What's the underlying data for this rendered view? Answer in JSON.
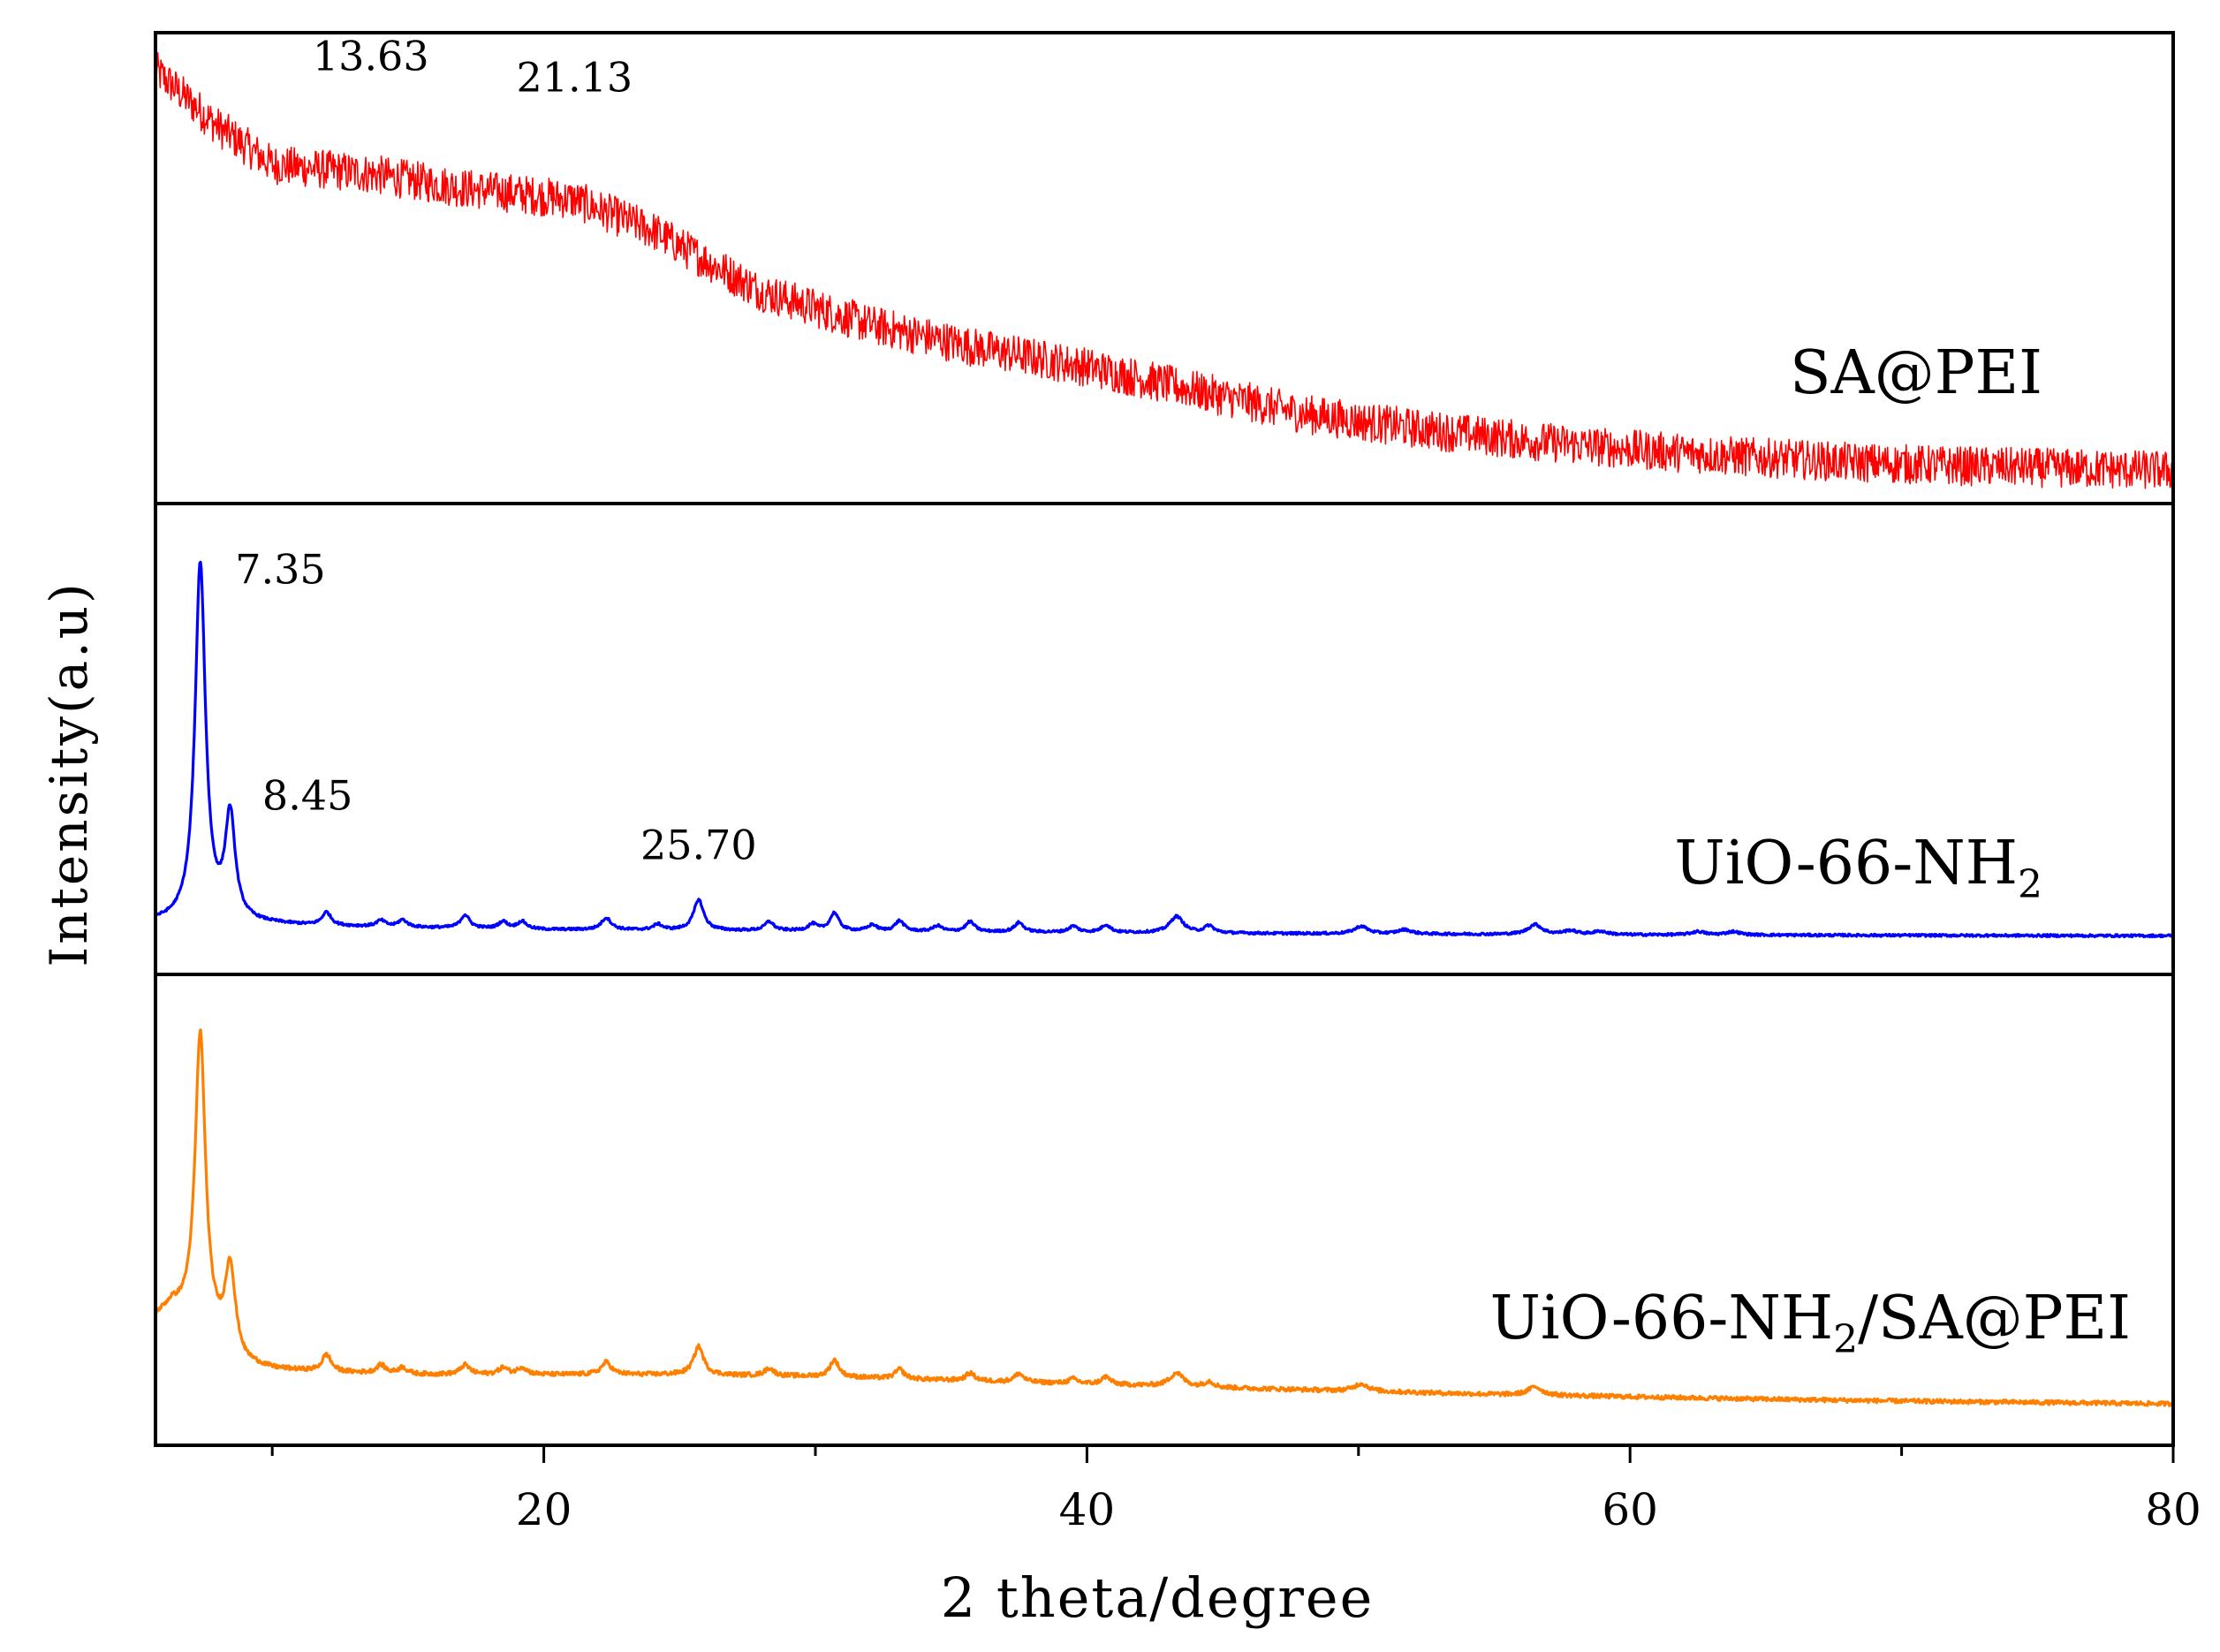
{
  "chart_data": {
    "type": "line",
    "title": "",
    "xlabel": "2 theta/degree",
    "ylabel": "Intensity(a.u)",
    "xlim": [
      5.7,
      80
    ],
    "xticks": [
      20,
      40,
      60,
      80
    ],
    "xticks_minor": [
      10,
      30,
      50,
      70
    ],
    "grid": false,
    "panels": [
      {
        "name": "SA@PEI",
        "label_parts": [
          {
            "text": "SA@PEI",
            "sub": false
          }
        ],
        "color": "#ff0000",
        "ylim": [
          0,
          100
        ],
        "noise": 4.2,
        "x": [
          5.7,
          8,
          10,
          13.63,
          17,
          21.13,
          24,
          28,
          32,
          36,
          40,
          44,
          48,
          52,
          56,
          60,
          64,
          68,
          72,
          76,
          80
        ],
        "values": [
          92,
          80,
          72,
          70,
          67,
          64.5,
          58,
          45,
          38,
          33,
          29,
          24,
          19,
          16,
          13.5,
          11.5,
          10,
          8.8,
          8,
          7.5,
          7
        ],
        "annotations": [
          {
            "text": "13.63",
            "x": 13.63,
            "y": 92
          },
          {
            "text": "21.13",
            "x": 21.13,
            "y": 87.5
          }
        ]
      },
      {
        "name": "UiO-66-NH2",
        "label_parts": [
          {
            "text": "UiO-66-NH",
            "sub": false
          },
          {
            "text": "2",
            "sub": true
          }
        ],
        "color": "#0000ff",
        "ylim": [
          0,
          100
        ],
        "noise": 0.25,
        "x": [
          5.7,
          8,
          12,
          20,
          30,
          40,
          50,
          60,
          70,
          80
        ],
        "values": [
          11,
          11,
          10.2,
          9.5,
          9.2,
          8.9,
          8.6,
          8.4,
          8.3,
          8.2
        ],
        "peaks": [
          {
            "x": 7.35,
            "h": 76,
            "w": 0.23
          },
          {
            "x": 8.45,
            "h": 22,
            "w": 0.22
          },
          {
            "x": 12.0,
            "h": 2.8,
            "w": 0.2
          },
          {
            "x": 14.0,
            "h": 1.3,
            "w": 0.2
          },
          {
            "x": 14.8,
            "h": 1.5,
            "w": 0.2
          },
          {
            "x": 17.1,
            "h": 2.8,
            "w": 0.2
          },
          {
            "x": 18.5,
            "h": 1.5,
            "w": 0.2
          },
          {
            "x": 19.2,
            "h": 1.6,
            "w": 0.2
          },
          {
            "x": 22.3,
            "h": 2.5,
            "w": 0.22
          },
          {
            "x": 24.2,
            "h": 1.2,
            "w": 0.2
          },
          {
            "x": 25.7,
            "h": 6.5,
            "w": 0.22
          },
          {
            "x": 28.3,
            "h": 1.9,
            "w": 0.2
          },
          {
            "x": 29.9,
            "h": 1.4,
            "w": 0.2
          },
          {
            "x": 30.7,
            "h": 3.8,
            "w": 0.2
          },
          {
            "x": 32.1,
            "h": 1.3,
            "w": 0.2
          },
          {
            "x": 33.1,
            "h": 2.2,
            "w": 0.2
          },
          {
            "x": 34.5,
            "h": 1.2,
            "w": 0.2
          },
          {
            "x": 35.7,
            "h": 2.1,
            "w": 0.2
          },
          {
            "x": 37.5,
            "h": 2.0,
            "w": 0.2
          },
          {
            "x": 39.5,
            "h": 1.3,
            "w": 0.2
          },
          {
            "x": 40.7,
            "h": 1.6,
            "w": 0.2
          },
          {
            "x": 43.3,
            "h": 3.5,
            "w": 0.3
          },
          {
            "x": 44.5,
            "h": 1.5,
            "w": 0.2
          },
          {
            "x": 50.1,
            "h": 1.6,
            "w": 0.3
          },
          {
            "x": 51.7,
            "h": 0.9,
            "w": 0.3
          },
          {
            "x": 56.5,
            "h": 2.1,
            "w": 0.3
          },
          {
            "x": 57.8,
            "h": 0.8,
            "w": 0.3
          },
          {
            "x": 58.9,
            "h": 0.7,
            "w": 0.3
          },
          {
            "x": 62.5,
            "h": 0.7,
            "w": 0.3
          },
          {
            "x": 63.8,
            "h": 0.7,
            "w": 0.3
          }
        ],
        "annotations": [
          {
            "text": "7.35",
            "x": 10.3,
            "y": 83
          },
          {
            "text": "8.45",
            "x": 11.3,
            "y": 35
          },
          {
            "text": "25.70",
            "x": 25.7,
            "y": 24.5
          }
        ]
      },
      {
        "name": "UiO-66-NH2/SA@PEI",
        "label_parts": [
          {
            "text": "UiO-66-NH",
            "sub": false
          },
          {
            "text": "2",
            "sub": true
          },
          {
            "text": "/SA@PEI",
            "sub": false
          }
        ],
        "color": "#ff8000",
        "ylim": [
          0,
          100
        ],
        "noise": 0.45,
        "x": [
          5.7,
          6.3,
          9,
          10,
          12,
          15,
          20,
          25,
          30,
          35,
          40,
          45,
          50,
          55,
          60,
          65,
          70,
          75,
          80
        ],
        "values": [
          27,
          29,
          17,
          16,
          15.5,
          15,
          15,
          15,
          14.6,
          13.8,
          13,
          12.2,
          11.5,
          10.8,
          10.3,
          9.8,
          9.4,
          9.1,
          8.8
        ],
        "peaks": [
          {
            "x": 7.35,
            "h": 63,
            "w": 0.23
          },
          {
            "x": 8.45,
            "h": 18,
            "w": 0.22
          },
          {
            "x": 12.0,
            "h": 3.6,
            "w": 0.2
          },
          {
            "x": 14.0,
            "h": 1.8,
            "w": 0.2
          },
          {
            "x": 14.8,
            "h": 1.4,
            "w": 0.2
          },
          {
            "x": 17.1,
            "h": 2.0,
            "w": 0.2
          },
          {
            "x": 18.5,
            "h": 1.4,
            "w": 0.2
          },
          {
            "x": 19.2,
            "h": 1.5,
            "w": 0.2
          },
          {
            "x": 22.3,
            "h": 2.6,
            "w": 0.22
          },
          {
            "x": 25.7,
            "h": 6.0,
            "w": 0.22
          },
          {
            "x": 28.3,
            "h": 1.6,
            "w": 0.2
          },
          {
            "x": 30.7,
            "h": 3.6,
            "w": 0.2
          },
          {
            "x": 33.1,
            "h": 2.0,
            "w": 0.2
          },
          {
            "x": 35.7,
            "h": 1.6,
            "w": 0.2
          },
          {
            "x": 37.5,
            "h": 1.8,
            "w": 0.2
          },
          {
            "x": 39.5,
            "h": 1.0,
            "w": 0.2
          },
          {
            "x": 40.7,
            "h": 1.6,
            "w": 0.2
          },
          {
            "x": 43.3,
            "h": 2.9,
            "w": 0.3
          },
          {
            "x": 44.5,
            "h": 1.2,
            "w": 0.2
          },
          {
            "x": 50.1,
            "h": 1.6,
            "w": 0.3
          },
          {
            "x": 56.5,
            "h": 1.8,
            "w": 0.3
          }
        ],
        "annotations": []
      }
    ]
  }
}
